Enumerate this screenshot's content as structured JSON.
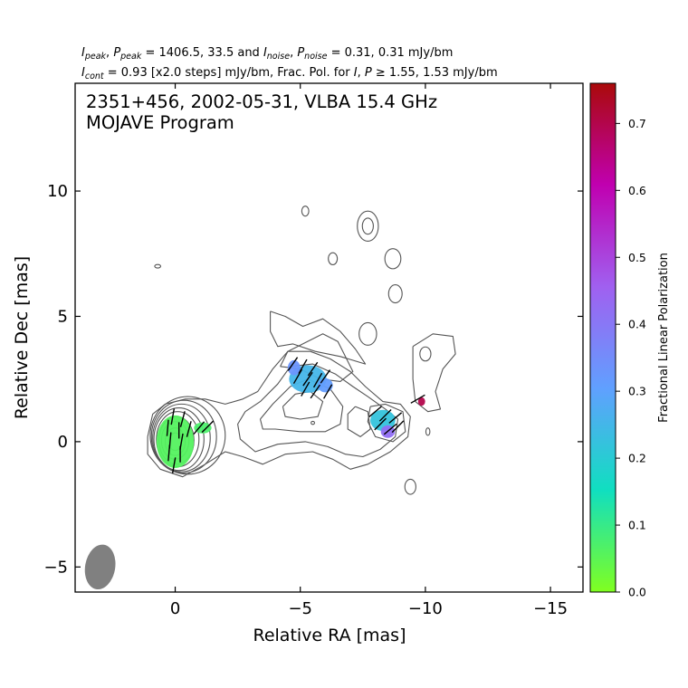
{
  "header": {
    "line1": {
      "parts": [
        {
          "t": "I",
          "it": true
        },
        {
          "t": "peak",
          "it": true,
          "sub": true
        },
        {
          "t": ", "
        },
        {
          "t": "P",
          "it": true
        },
        {
          "t": "peak",
          "it": true,
          "sub": true
        },
        {
          "t": " = 1406.5, 33.5 and "
        },
        {
          "t": "I",
          "it": true
        },
        {
          "t": "noise",
          "it": true,
          "sub": true
        },
        {
          "t": ", "
        },
        {
          "t": "P",
          "it": true
        },
        {
          "t": "noise",
          "it": true,
          "sub": true
        },
        {
          "t": " = 0.31, 0.31 mJy/bm"
        }
      ]
    },
    "line2": {
      "parts": [
        {
          "t": "I",
          "it": true
        },
        {
          "t": "cont",
          "it": true,
          "sub": true
        },
        {
          "t": " = 0.93 [x2.0 steps] mJy/bm, Frac. Pol. for "
        },
        {
          "t": "I",
          "it": true
        },
        {
          "t": ", "
        },
        {
          "t": "P",
          "it": true
        },
        {
          "t": " ≥ 1.55, 1.53 mJy/bm"
        }
      ]
    }
  },
  "plot_title_line1": "2351+456, 2002-05-31, VLBA 15.4 GHz",
  "plot_title_line2": "MOJAVE Program",
  "colorbar": {
    "label": "Fractional Linear Polarization",
    "ticks": [
      0.0,
      0.1,
      0.2,
      0.3,
      0.4,
      0.5,
      0.6,
      0.7
    ],
    "tick_labels": [
      "0.0",
      "0.1",
      "0.2",
      "0.3",
      "0.4",
      "0.5",
      "0.6",
      "0.7"
    ],
    "range": [
      0,
      0.76
    ],
    "colormap": [
      "#80ff20",
      "#10dfc0",
      "#60a0ff",
      "#a060f0",
      "#c000b0",
      "#aa0a0a"
    ]
  },
  "chart_data": {
    "type": "contour",
    "xlabel": "Relative RA [mas]",
    "ylabel": "Relative Dec [mas]",
    "xlim": [
      4,
      -16.3
    ],
    "ylim": [
      -6,
      14.3
    ],
    "xticks": [
      0,
      -5,
      -10,
      -15
    ],
    "xtick_labels": [
      "0",
      "−5",
      "−10",
      "−15"
    ],
    "yticks": [
      -5,
      0,
      5,
      10
    ],
    "ytick_labels": [
      "−5",
      "0",
      "5",
      "10"
    ],
    "beam": {
      "x": 3.0,
      "y": -5.0,
      "major_mas": 0.9,
      "minor_mas": 0.6,
      "pa_deg": 10
    },
    "contour_base_mJy": 0.93,
    "contour_step_factor": 2.0,
    "contour_color": "#555555",
    "polarization_patches": [
      {
        "x": 0.0,
        "y": 0.0,
        "rx": 0.75,
        "ry": 1.05,
        "frac_pol": 0.06
      },
      {
        "x": -1.1,
        "y": 0.55,
        "rx": 0.35,
        "ry": 0.22,
        "frac_pol": 0.07
      },
      {
        "x": -5.3,
        "y": 2.5,
        "rx": 0.75,
        "ry": 0.55,
        "frac_pol": 0.25
      },
      {
        "x": -4.75,
        "y": 2.95,
        "rx": 0.25,
        "ry": 0.3,
        "frac_pol": 0.33
      },
      {
        "x": -6.0,
        "y": 2.25,
        "rx": 0.3,
        "ry": 0.28,
        "frac_pol": 0.31
      },
      {
        "x": -8.3,
        "y": 0.85,
        "rx": 0.5,
        "ry": 0.42,
        "frac_pol": 0.22
      },
      {
        "x": -8.5,
        "y": 0.4,
        "rx": 0.28,
        "ry": 0.25,
        "frac_pol": 0.42
      },
      {
        "x": -9.85,
        "y": 1.6,
        "rx": 0.14,
        "ry": 0.17,
        "frac_pol": 0.7
      }
    ],
    "evpa_vectors": [
      {
        "x": 0.1,
        "y": 1.0,
        "angle_deg": 10
      },
      {
        "x": -0.3,
        "y": 0.9,
        "angle_deg": 15
      },
      {
        "x": 0.3,
        "y": 0.55,
        "angle_deg": 5
      },
      {
        "x": -0.15,
        "y": 0.45,
        "angle_deg": 0
      },
      {
        "x": -0.55,
        "y": 0.5,
        "angle_deg": 15
      },
      {
        "x": 0.2,
        "y": 0.05,
        "angle_deg": 5
      },
      {
        "x": -0.25,
        "y": 0.0,
        "angle_deg": 10
      },
      {
        "x": 0.25,
        "y": -0.45,
        "angle_deg": 5
      },
      {
        "x": -0.2,
        "y": -0.5,
        "angle_deg": 0
      },
      {
        "x": 0.05,
        "y": -0.95,
        "angle_deg": 10
      },
      {
        "x": -0.95,
        "y": 0.55,
        "angle_deg": 40
      },
      {
        "x": -1.3,
        "y": 0.6,
        "angle_deg": 45
      },
      {
        "x": -4.7,
        "y": 3.1,
        "angle_deg": 35
      },
      {
        "x": -5.1,
        "y": 3.0,
        "angle_deg": 30
      },
      {
        "x": -5.5,
        "y": 2.9,
        "angle_deg": 35
      },
      {
        "x": -4.9,
        "y": 2.6,
        "angle_deg": 30
      },
      {
        "x": -5.3,
        "y": 2.5,
        "angle_deg": 35
      },
      {
        "x": -5.7,
        "y": 2.45,
        "angle_deg": 30
      },
      {
        "x": -6.0,
        "y": 2.6,
        "angle_deg": 35
      },
      {
        "x": -5.2,
        "y": 2.1,
        "angle_deg": 30
      },
      {
        "x": -5.6,
        "y": 2.0,
        "angle_deg": 35
      },
      {
        "x": -6.1,
        "y": 2.0,
        "angle_deg": 30
      },
      {
        "x": -8.0,
        "y": 1.2,
        "angle_deg": 50
      },
      {
        "x": -8.4,
        "y": 1.05,
        "angle_deg": 45
      },
      {
        "x": -8.8,
        "y": 0.95,
        "angle_deg": 50
      },
      {
        "x": -8.2,
        "y": 0.7,
        "angle_deg": 45
      },
      {
        "x": -8.6,
        "y": 0.5,
        "angle_deg": 50
      },
      {
        "x": -8.9,
        "y": 0.6,
        "angle_deg": 45
      },
      {
        "x": -9.7,
        "y": 1.7,
        "angle_deg": 60
      }
    ],
    "contour_sets": [
      {
        "name": "core",
        "shapes": [
          {
            "x": 0.0,
            "y": 0.0,
            "rx": 0.25,
            "ry": 0.35
          },
          {
            "x": 0.0,
            "y": 0.0,
            "rx": 0.4,
            "ry": 0.55
          },
          {
            "x": 0.0,
            "y": 0.05,
            "rx": 0.55,
            "ry": 0.75
          },
          {
            "x": -0.05,
            "y": 0.05,
            "rx": 0.7,
            "ry": 0.95
          },
          {
            "x": -0.1,
            "y": 0.1,
            "rx": 0.85,
            "ry": 1.1
          },
          {
            "x": -0.15,
            "y": 0.1,
            "rx": 1.0,
            "ry": 1.25
          },
          {
            "x": -0.25,
            "y": 0.15,
            "rx": 1.15,
            "ry": 1.35
          },
          {
            "x": -0.35,
            "y": 0.2,
            "rx": 1.3,
            "ry": 1.45
          },
          {
            "x": -0.5,
            "y": 0.25,
            "rx": 1.5,
            "ry": 1.55
          }
        ]
      }
    ],
    "contour_lines": [
      [
        [
          1.1,
          0.2
        ],
        [
          0.9,
          1.1
        ],
        [
          0.4,
          1.5
        ],
        [
          -0.4,
          1.7
        ],
        [
          -1.2,
          1.7
        ],
        [
          -2.0,
          1.5
        ],
        [
          -2.7,
          1.7
        ],
        [
          -3.3,
          2.0
        ],
        [
          -3.9,
          2.9
        ],
        [
          -4.5,
          3.6
        ],
        [
          -5.4,
          3.6
        ],
        [
          -6.2,
          3.3
        ],
        [
          -7.0,
          2.8
        ],
        [
          -7.6,
          2.2
        ],
        [
          -8.3,
          1.6
        ],
        [
          -9.0,
          1.5
        ],
        [
          -9.4,
          1.0
        ],
        [
          -9.3,
          0.2
        ],
        [
          -8.6,
          -0.4
        ],
        [
          -7.7,
          -0.9
        ],
        [
          -7.0,
          -1.1
        ],
        [
          -6.3,
          -0.7
        ],
        [
          -5.5,
          -0.4
        ],
        [
          -4.4,
          -0.5
        ],
        [
          -3.5,
          -0.9
        ],
        [
          -2.7,
          -0.6
        ],
        [
          -2.0,
          -0.4
        ],
        [
          -1.2,
          -0.9
        ],
        [
          -0.3,
          -1.4
        ],
        [
          0.6,
          -1.1
        ],
        [
          1.1,
          -0.5
        ],
        [
          1.1,
          0.2
        ]
      ],
      [
        [
          -2.8,
          1.2
        ],
        [
          -3.4,
          1.6
        ],
        [
          -4.1,
          2.3
        ],
        [
          -4.6,
          3.0
        ],
        [
          -5.5,
          3.1
        ],
        [
          -6.4,
          2.7
        ],
        [
          -7.1,
          2.2
        ],
        [
          -7.7,
          1.8
        ],
        [
          -8.4,
          1.3
        ],
        [
          -8.9,
          0.9
        ],
        [
          -8.8,
          0.2
        ],
        [
          -8.2,
          -0.3
        ],
        [
          -7.5,
          -0.6
        ],
        [
          -6.8,
          -0.5
        ],
        [
          -6.1,
          -0.2
        ],
        [
          -5.2,
          0.0
        ],
        [
          -4.1,
          -0.1
        ],
        [
          -3.2,
          -0.4
        ],
        [
          -2.6,
          0.1
        ],
        [
          -2.5,
          0.7
        ],
        [
          -2.8,
          1.2
        ]
      ],
      [
        [
          -3.4,
          0.9
        ],
        [
          -3.9,
          1.5
        ],
        [
          -4.6,
          2.2
        ],
        [
          -5.3,
          2.5
        ],
        [
          -6.2,
          2.1
        ],
        [
          -6.7,
          1.4
        ],
        [
          -6.6,
          0.7
        ],
        [
          -6.0,
          0.4
        ],
        [
          -5.0,
          0.4
        ],
        [
          -4.0,
          0.5
        ],
        [
          -3.5,
          0.5
        ],
        [
          -3.4,
          0.9
        ]
      ],
      [
        [
          -4.3,
          1.4
        ],
        [
          -4.8,
          1.9
        ],
        [
          -5.4,
          2.0
        ],
        [
          -5.9,
          1.6
        ],
        [
          -5.7,
          1.0
        ],
        [
          -5.0,
          0.9
        ],
        [
          -4.4,
          1.0
        ],
        [
          -4.3,
          1.4
        ]
      ],
      [
        [
          -4.2,
          3.0
        ],
        [
          -4.5,
          3.6
        ],
        [
          -5.1,
          3.9
        ],
        [
          -5.9,
          4.3
        ],
        [
          -6.5,
          4.0
        ],
        [
          -6.8,
          3.4
        ],
        [
          -7.1,
          2.8
        ],
        [
          -6.6,
          2.4
        ],
        [
          -5.8,
          2.5
        ],
        [
          -5.0,
          2.9
        ],
        [
          -4.2,
          3.0
        ]
      ],
      [
        [
          -7.2,
          1.4
        ],
        [
          -7.7,
          1.2
        ],
        [
          -7.8,
          0.5
        ],
        [
          -7.4,
          0.2
        ],
        [
          -6.9,
          0.5
        ],
        [
          -6.9,
          1.1
        ],
        [
          -7.2,
          1.4
        ]
      ],
      [
        [
          -7.8,
          1.4
        ],
        [
          -8.4,
          1.5
        ],
        [
          -9.1,
          1.2
        ],
        [
          -9.2,
          0.4
        ],
        [
          -8.7,
          0.0
        ],
        [
          -8.0,
          0.2
        ],
        [
          -7.7,
          0.8
        ],
        [
          -7.8,
          1.4
        ]
      ],
      [
        [
          -3.8,
          5.2
        ],
        [
          -4.4,
          5.0
        ],
        [
          -5.1,
          4.6
        ],
        [
          -5.9,
          4.9
        ],
        [
          -6.6,
          4.4
        ],
        [
          -7.2,
          3.7
        ],
        [
          -7.6,
          3.1
        ],
        [
          -6.6,
          3.4
        ],
        [
          -5.6,
          3.6
        ],
        [
          -4.7,
          3.9
        ],
        [
          -4.1,
          3.8
        ],
        [
          -3.8,
          4.4
        ],
        [
          -3.8,
          5.2
        ]
      ],
      [
        [
          -9.5,
          3.8
        ],
        [
          -10.3,
          4.3
        ],
        [
          -11.1,
          4.2
        ],
        [
          -11.2,
          3.5
        ],
        [
          -10.7,
          2.9
        ],
        [
          -10.4,
          2.0
        ],
        [
          -10.6,
          1.3
        ],
        [
          -10.1,
          1.2
        ],
        [
          -9.6,
          1.6
        ],
        [
          -9.5,
          2.5
        ],
        [
          -9.5,
          3.8
        ]
      ]
    ],
    "contour_blobs": [
      {
        "x": -7.7,
        "y": 4.3,
        "rx": 0.35,
        "ry": 0.45
      },
      {
        "x": -10.0,
        "y": 3.5,
        "rx": 0.22,
        "ry": 0.28
      },
      {
        "x": -10.1,
        "y": 0.4,
        "rx": 0.08,
        "ry": 0.15
      },
      {
        "x": -9.4,
        "y": -1.8,
        "rx": 0.22,
        "ry": 0.3
      },
      {
        "x": -8.7,
        "y": 7.3,
        "rx": 0.32,
        "ry": 0.4
      },
      {
        "x": -8.8,
        "y": 5.9,
        "rx": 0.27,
        "ry": 0.36
      },
      {
        "x": -6.3,
        "y": 7.3,
        "rx": 0.18,
        "ry": 0.24
      },
      {
        "x": -7.7,
        "y": 8.6,
        "rx": 0.42,
        "ry": 0.6
      },
      {
        "x": -7.7,
        "y": 8.6,
        "rx": 0.22,
        "ry": 0.32
      },
      {
        "x": -5.2,
        "y": 9.2,
        "rx": 0.14,
        "ry": 0.2
      },
      {
        "x": 0.7,
        "y": 7.0,
        "rx": 0.12,
        "ry": 0.07
      },
      {
        "x": -5.5,
        "y": 0.75,
        "rx": 0.07,
        "ry": 0.06
      }
    ]
  }
}
